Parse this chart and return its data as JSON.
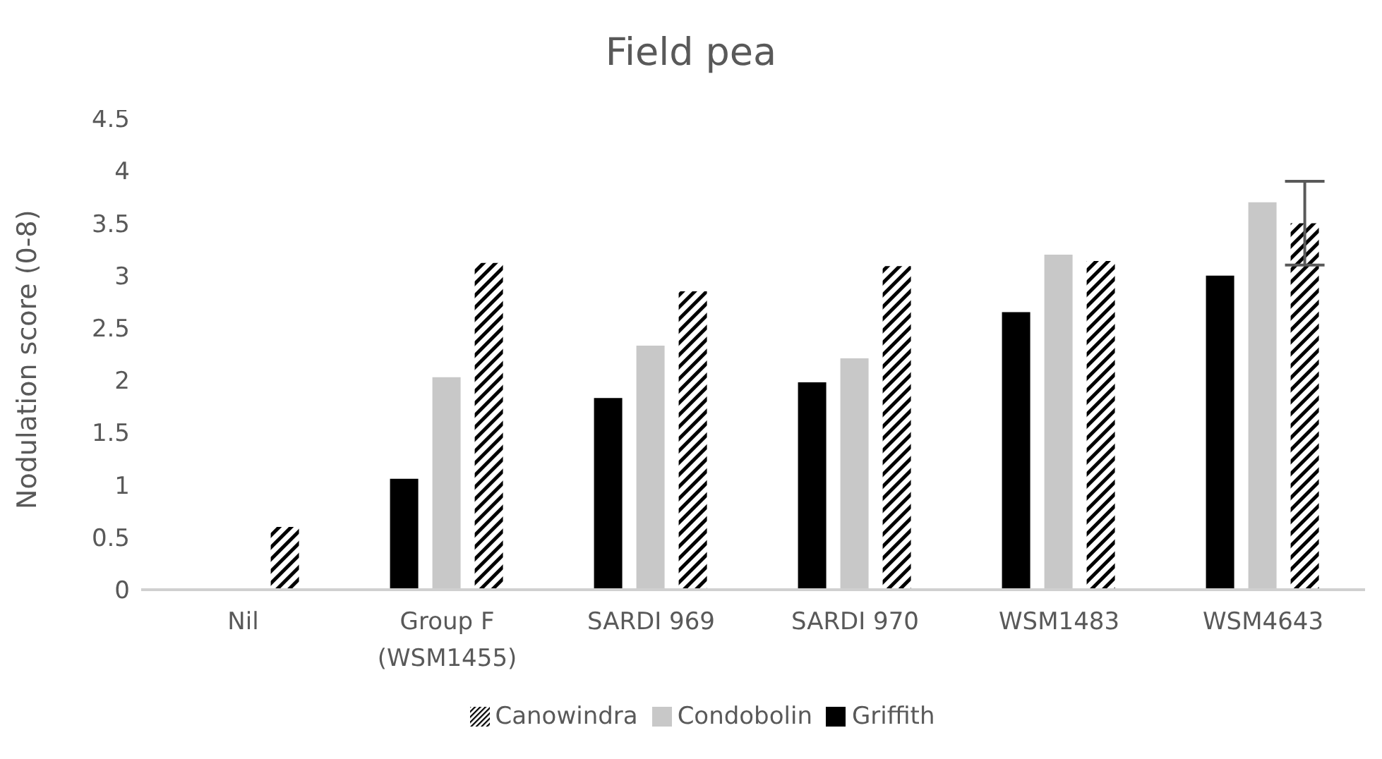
{
  "chart_data": {
    "type": "bar",
    "title": "Field pea",
    "ylabel": "Nodulation score (0-8)",
    "categories": [
      "Nil",
      "Group F (WSM1455)",
      "SARDI 969",
      "SARDI 970",
      "WSM1483",
      "WSM4643"
    ],
    "series": [
      {
        "name": "Griffith",
        "color": "#000000",
        "values": [
          0,
          1.06,
          1.83,
          1.98,
          2.65,
          3.0
        ]
      },
      {
        "name": "Condobolin",
        "color": "#c8c8c8",
        "values": [
          0,
          2.03,
          2.33,
          2.21,
          3.2,
          3.7
        ]
      },
      {
        "name": "Canowindra",
        "color": "#000000",
        "values": [
          0.6,
          3.12,
          2.85,
          3.09,
          3.14,
          3.5
        ],
        "errors": [
          null,
          null,
          null,
          null,
          null,
          0.4
        ]
      }
    ],
    "ylim": [
      0,
      4.5
    ],
    "yticks": [
      0,
      0.5,
      1,
      1.5,
      2,
      2.5,
      3,
      3.5,
      4,
      4.5
    ],
    "grid": false,
    "legend": "bottom"
  }
}
